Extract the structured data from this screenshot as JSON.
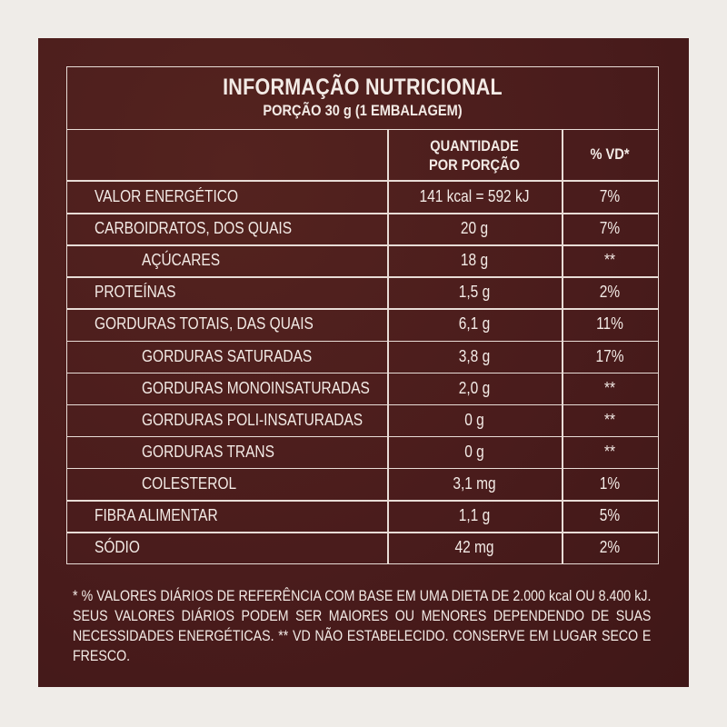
{
  "header": {
    "title": "INFORMAÇÃO NUTRICIONAL",
    "portion": "PORÇÃO 30 g (1 EMBALAGEM)"
  },
  "columns": {
    "quantity_line1": "QUANTIDADE",
    "quantity_line2": "POR PORÇÃO",
    "vd": "% VD*"
  },
  "rows": [
    {
      "name": "VALOR ENERGÉTICO",
      "qty": "141 kcal = 592 kJ",
      "vd": "7%"
    },
    {
      "name": "CARBOIDRATOS, DOS QUAIS",
      "qty": "20 g",
      "vd": "7%"
    },
    {
      "name": "AÇÚCARES",
      "qty": "18 g",
      "vd": "**"
    },
    {
      "name": "PROTEÍNAS",
      "qty": "1,5 g",
      "vd": "2%"
    },
    {
      "name": "GORDURAS TOTAIS, DAS QUAIS",
      "qty": "6,1 g",
      "vd": "11%"
    },
    {
      "name": "GORDURAS SATURADAS",
      "qty": "3,8 g",
      "vd": "17%"
    },
    {
      "name": "GORDURAS MONOINSATURADAS",
      "qty": "2,0 g",
      "vd": "**"
    },
    {
      "name": "GORDURAS POLI-INSATURADAS",
      "qty": "0 g",
      "vd": "**"
    },
    {
      "name": "GORDURAS TRANS",
      "qty": "0 g",
      "vd": "**"
    },
    {
      "name": "COLESTEROL",
      "qty": "3,1 mg",
      "vd": "1%"
    },
    {
      "name": "FIBRA ALIMENTAR",
      "qty": "1,1 g",
      "vd": "5%"
    },
    {
      "name": "SÓDIO",
      "qty": "42 mg",
      "vd": "2%"
    }
  ],
  "footnote": {
    "line1": "* % VALORES DIÁRIOS DE REFERÊNCIA COM BASE EM UMA DIETA DE 2.000 kcal OU 8.400 kJ.",
    "line2": "SEUS VALORES DIÁRIOS PODEM SER MAIORES OU MENORES DEPENDENDO DE SUAS",
    "line3": "NECESSIDADES ENERGÉTICAS. ** VD NÃO ESTABELECIDO. CONSERVE EM LUGAR SECO E FRESCO."
  },
  "colors": {
    "background": "#efece8",
    "panel": "#4b1e1e",
    "text": "#f3ebe6"
  }
}
